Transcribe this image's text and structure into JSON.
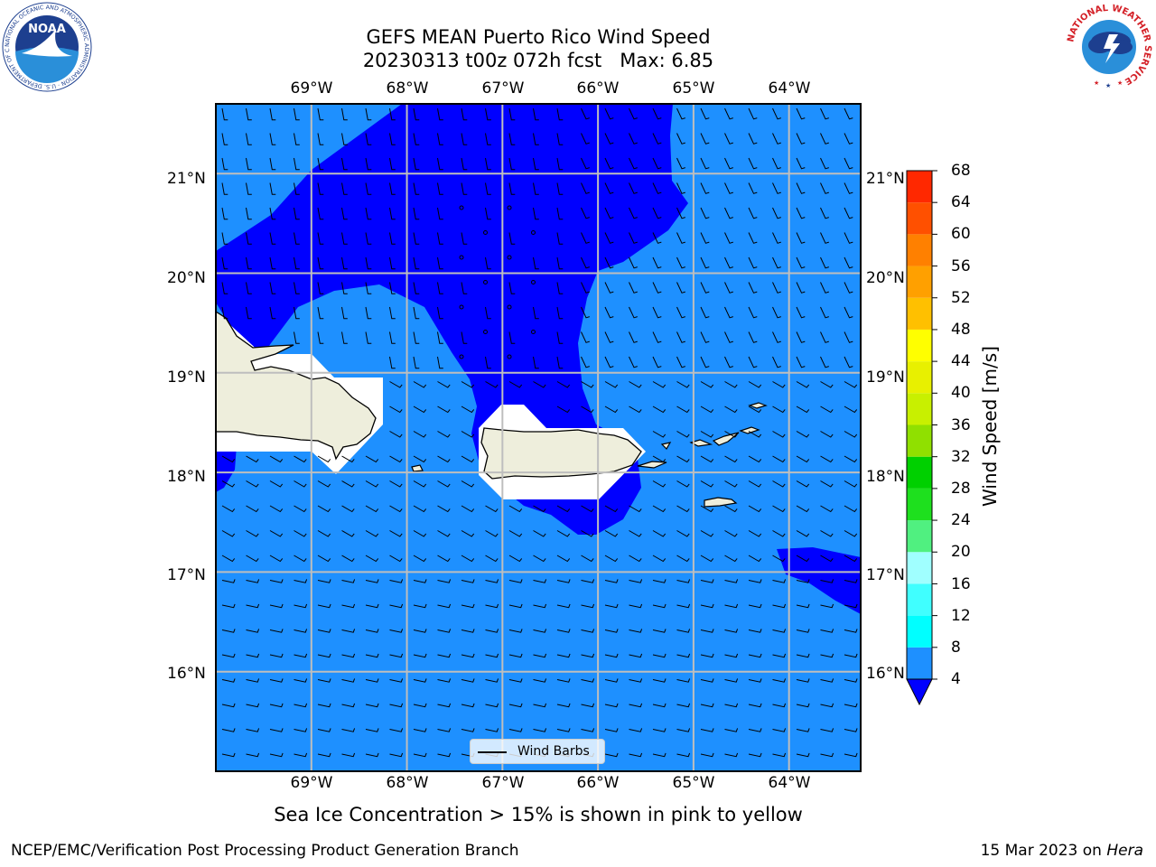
{
  "title": {
    "line1": "GEFS MEAN Puerto Rico Wind Speed",
    "line2": "20230313 t00z 072h fcst   Max: 6.85"
  },
  "map": {
    "lon_labels": [
      "69°W",
      "68°W",
      "67°W",
      "66°W",
      "65°W",
      "64°W"
    ],
    "lat_labels": [
      "21°N",
      "20°N",
      "19°N",
      "18°N",
      "17°N",
      "16°N"
    ],
    "lon_range": [
      -70,
      -63.25
    ],
    "lat_range": [
      15.0,
      21.7
    ],
    "colors": {
      "wind_4_8": "#1e90ff",
      "wind_below_4": "#0000ff",
      "land": "#eeeedc",
      "grid": "#bebebe"
    },
    "legend_label": "Wind Barbs"
  },
  "colorbar": {
    "label": "Wind Speed [m/s]",
    "ticks": [
      "4",
      "8",
      "12",
      "16",
      "20",
      "24",
      "28",
      "32",
      "36",
      "40",
      "44",
      "48",
      "52",
      "56",
      "60",
      "64",
      "68"
    ],
    "colors": [
      "#1e90ff",
      "#00ffff",
      "#40ffff",
      "#a0ffff",
      "#50f080",
      "#1ee01e",
      "#00d000",
      "#90e000",
      "#c8f000",
      "#e8f000",
      "#ffff00",
      "#ffc000",
      "#ffa000",
      "#ff8000",
      "#ff5000",
      "#ff2800",
      "#ff0000"
    ],
    "under_color": "#0000ff"
  },
  "caption": "Sea Ice Concentration > 15% is shown in pink to yellow",
  "footer": {
    "left": "NCEP/EMC/Verification Post Processing Product Generation Branch",
    "date": "15 Mar 2023 on ",
    "machine": "Hera"
  },
  "logos": {
    "noaa_text": "NOAA",
    "noaa_ring": "NATIONAL OCEANIC AND ATMOSPHERIC ADMINISTRATION · U.S. DEPARTMENT OF COMMERCE",
    "nws_ring": "NATIONAL WEATHER SERVICE"
  }
}
